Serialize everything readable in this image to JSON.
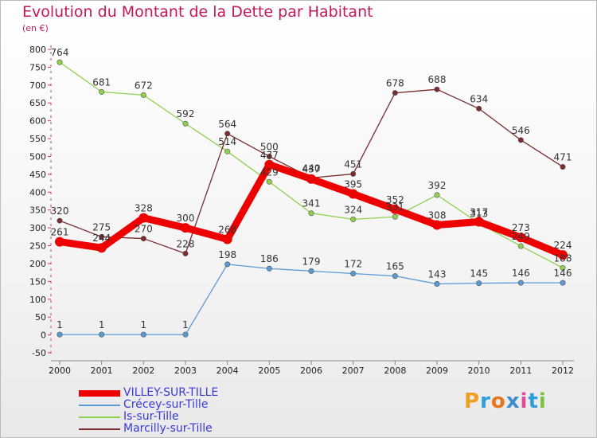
{
  "title": "Evolution du Montant de la Dette par Habitant",
  "unit": "(en €)",
  "logo": {
    "letters": [
      {
        "char": "P",
        "color": "#f0a020"
      },
      {
        "char": "r",
        "color": "#2f9ed8"
      },
      {
        "char": "o",
        "color": "#e8761a"
      },
      {
        "char": "x",
        "color": "#3b8dd0"
      },
      {
        "char": "i",
        "color": "#e04a9a"
      },
      {
        "char": "t",
        "color": "#2f9ed8"
      },
      {
        "char": "i",
        "color": "#7cc242"
      }
    ]
  },
  "chart_data": {
    "type": "line",
    "title": "Evolution du Montant de la Dette par Habitant",
    "ylabel": "(en €)",
    "xlabel": "",
    "x": [
      "2000",
      "2001",
      "2002",
      "2003",
      "2004",
      "2005",
      "2006",
      "2007",
      "2008",
      "2009",
      "2010",
      "2011",
      "2012"
    ],
    "ylim": [
      -50,
      800
    ],
    "yticks": [
      "800",
      "750",
      "700",
      "650",
      "600",
      "550",
      "500",
      "450",
      "400",
      "350",
      "300",
      "250",
      "200",
      "150",
      "100",
      "50",
      "0",
      "-50"
    ],
    "grid": false,
    "legend_position": "bottom-left",
    "series": [
      {
        "name": "VILLEY-SUR-TILLE",
        "color": "#ee0000",
        "style": "thick",
        "values": [
          261,
          244,
          328,
          300,
          268,
          477,
          437,
          395,
          352,
          308,
          317,
          273,
          224
        ],
        "labels": [
          "261",
          "244",
          "328",
          "300",
          "268",
          "477",
          "437",
          "395",
          "352",
          "308",
          "317",
          "273",
          "224"
        ]
      },
      {
        "name": "Crécey-sur-Tille",
        "color": "#5b9bd5",
        "style": "thin",
        "values": [
          1,
          1,
          1,
          1,
          198,
          186,
          179,
          172,
          165,
          143,
          145,
          146,
          146
        ],
        "labels": [
          "1",
          "1",
          "1",
          "1",
          "198",
          "186",
          "179",
          "172",
          "165",
          "143",
          "145",
          "146",
          "146"
        ]
      },
      {
        "name": "Is-sur-Tille",
        "color": "#8fd14f",
        "style": "thin",
        "values": [
          764,
          681,
          672,
          592,
          514,
          429,
          341,
          324,
          331,
          392,
          313,
          249,
          188
        ],
        "labels": [
          "764",
          "681",
          "672",
          "592",
          "514",
          "429",
          "341",
          "324",
          "331",
          "392",
          "313",
          "249",
          "188"
        ]
      },
      {
        "name": "Marcilly-sur-Tille",
        "color": "#7b2c2c",
        "style": "thin",
        "values": [
          320,
          275,
          270,
          228,
          564,
          500,
          440,
          451,
          678,
          688,
          634,
          546,
          471
        ],
        "labels": [
          "320",
          "275",
          "270",
          "228",
          "564",
          "500",
          "440",
          "451",
          "678",
          "688",
          "634",
          "546",
          "471"
        ]
      }
    ]
  }
}
